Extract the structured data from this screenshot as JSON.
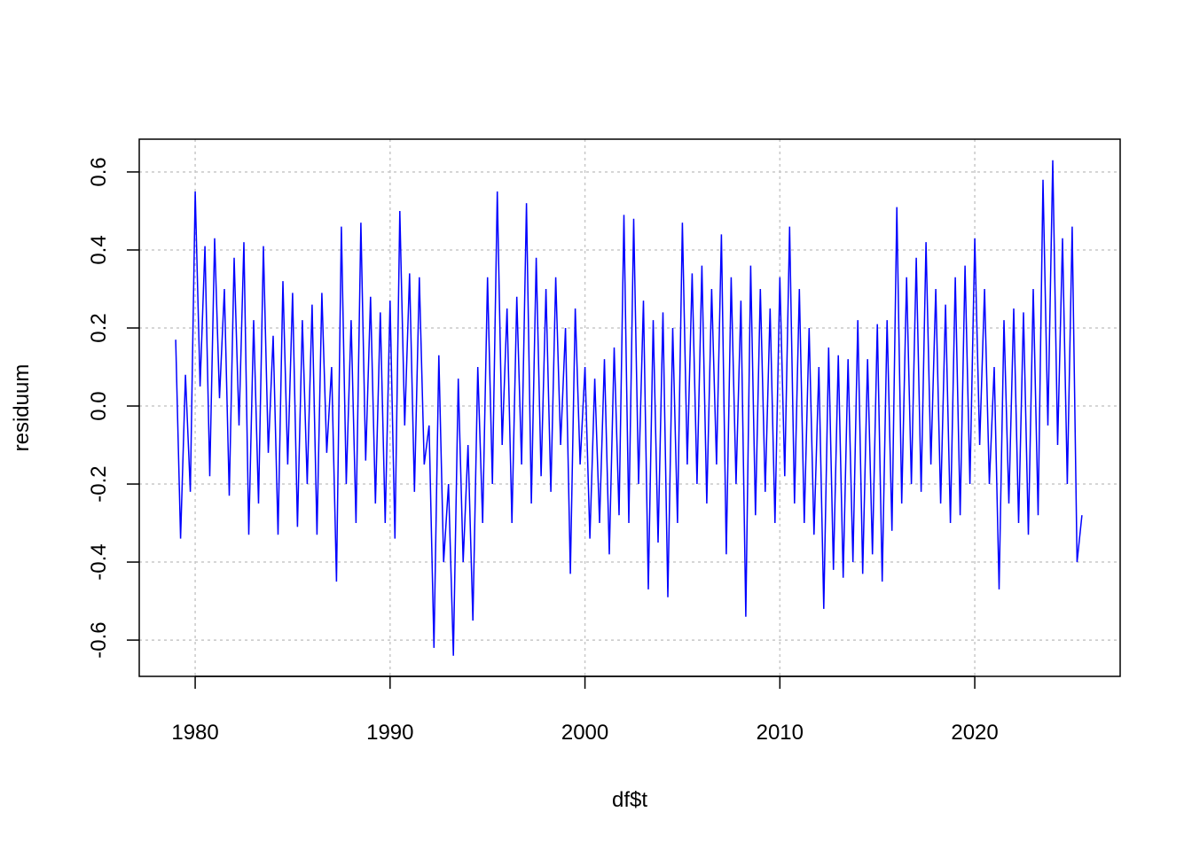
{
  "chart_data": {
    "type": "line",
    "x_label": "df$t",
    "y_label": "residuum",
    "color": "#0000ff",
    "grid": true,
    "xlim": [
      1977.13,
      2027.46
    ],
    "ylim": [
      -0.693,
      0.684
    ],
    "xticks": [
      1980,
      1990,
      2000,
      2010,
      2020
    ],
    "yticks": [
      -0.6,
      -0.4,
      -0.2,
      {
        "value": 0,
        "label": "0.0"
      },
      0.2,
      0.4,
      0.6
    ],
    "x": [
      1979,
      1979.25,
      1979.5,
      1979.75,
      1980,
      1980.25,
      1980.5,
      1980.75,
      1981,
      1981.25,
      1981.5,
      1981.75,
      1982,
      1982.25,
      1982.5,
      1982.75,
      1983,
      1983.25,
      1983.5,
      1983.75,
      1984,
      1984.25,
      1984.5,
      1984.75,
      1985,
      1985.25,
      1985.5,
      1985.75,
      1986,
      1986.25,
      1986.5,
      1986.75,
      1987,
      1987.25,
      1987.5,
      1987.75,
      1988,
      1988.25,
      1988.5,
      1988.75,
      1989,
      1989.25,
      1989.5,
      1989.75,
      1990,
      1990.25,
      1990.5,
      1990.75,
      1991,
      1991.25,
      1991.5,
      1991.75,
      1992,
      1992.25,
      1992.5,
      1992.75,
      1993,
      1993.25,
      1993.5,
      1993.75,
      1994,
      1994.25,
      1994.5,
      1994.75,
      1995,
      1995.25,
      1995.5,
      1995.75,
      1996,
      1996.25,
      1996.5,
      1996.75,
      1997,
      1997.25,
      1997.5,
      1997.75,
      1998,
      1998.25,
      1998.5,
      1998.75,
      1999,
      1999.25,
      1999.5,
      1999.75,
      2000,
      2000.25,
      2000.5,
      2000.75,
      2001,
      2001.25,
      2001.5,
      2001.75,
      2002,
      2002.25,
      2002.5,
      2002.75,
      2003,
      2003.25,
      2003.5,
      2003.75,
      2004,
      2004.25,
      2004.5,
      2004.75,
      2005,
      2005.25,
      2005.5,
      2005.75,
      2006,
      2006.25,
      2006.5,
      2006.75,
      2007,
      2007.25,
      2007.5,
      2007.75,
      2008,
      2008.25,
      2008.5,
      2008.75,
      2009,
      2009.25,
      2009.5,
      2009.75,
      2010,
      2010.25,
      2010.5,
      2010.75,
      2011,
      2011.25,
      2011.5,
      2011.75,
      2012,
      2012.25,
      2012.5,
      2012.75,
      2013,
      2013.25,
      2013.5,
      2013.75,
      2014,
      2014.25,
      2014.5,
      2014.75,
      2015,
      2015.25,
      2015.5,
      2015.75,
      2016,
      2016.25,
      2016.5,
      2016.75,
      2017,
      2017.25,
      2017.5,
      2017.75,
      2018,
      2018.25,
      2018.5,
      2018.75,
      2019,
      2019.25,
      2019.5,
      2019.75,
      2020,
      2020.25,
      2020.5,
      2020.75,
      2021,
      2021.25,
      2021.5,
      2021.75,
      2022,
      2022.25,
      2022.5,
      2022.75,
      2023,
      2023.25,
      2023.5,
      2023.75,
      2024,
      2024.25,
      2024.5,
      2024.75,
      2025,
      2025.25,
      2025.5
    ],
    "values": [
      0.17,
      -0.34,
      0.08,
      -0.22,
      0.55,
      0.05,
      0.41,
      -0.18,
      0.43,
      0.02,
      0.3,
      -0.23,
      0.38,
      -0.05,
      0.42,
      -0.33,
      0.22,
      -0.25,
      0.41,
      -0.12,
      0.18,
      -0.33,
      0.32,
      -0.15,
      0.29,
      -0.31,
      0.22,
      -0.2,
      0.26,
      -0.33,
      0.29,
      -0.12,
      0.1,
      -0.45,
      0.46,
      -0.2,
      0.22,
      -0.3,
      0.47,
      -0.14,
      0.28,
      -0.25,
      0.24,
      -0.3,
      0.27,
      -0.34,
      0.5,
      -0.05,
      0.34,
      -0.22,
      0.33,
      -0.15,
      -0.05,
      -0.62,
      0.13,
      -0.4,
      -0.2,
      -0.64,
      0.07,
      -0.4,
      -0.1,
      -0.55,
      0.1,
      -0.3,
      0.33,
      -0.2,
      0.55,
      -0.1,
      0.25,
      -0.3,
      0.28,
      -0.15,
      0.52,
      -0.25,
      0.38,
      -0.18,
      0.3,
      -0.22,
      0.33,
      -0.1,
      0.2,
      -0.43,
      0.25,
      -0.15,
      0.1,
      -0.34,
      0.07,
      -0.3,
      0.12,
      -0.38,
      0.15,
      -0.28,
      0.49,
      -0.3,
      0.48,
      -0.2,
      0.27,
      -0.47,
      0.22,
      -0.35,
      0.24,
      -0.49,
      0.2,
      -0.3,
      0.47,
      -0.15,
      0.34,
      -0.2,
      0.36,
      -0.25,
      0.3,
      -0.15,
      0.44,
      -0.38,
      0.33,
      -0.2,
      0.27,
      -0.54,
      0.36,
      -0.28,
      0.3,
      -0.22,
      0.25,
      -0.3,
      0.33,
      -0.18,
      0.46,
      -0.25,
      0.3,
      -0.3,
      0.2,
      -0.33,
      0.1,
      -0.52,
      0.15,
      -0.42,
      0.13,
      -0.44,
      0.12,
      -0.4,
      0.22,
      -0.43,
      0.12,
      -0.38,
      0.21,
      -0.45,
      0.22,
      -0.32,
      0.51,
      -0.25,
      0.33,
      -0.2,
      0.38,
      -0.22,
      0.42,
      -0.15,
      0.3,
      -0.25,
      0.26,
      -0.3,
      0.33,
      -0.28,
      0.36,
      -0.2,
      0.43,
      -0.1,
      0.3,
      -0.2,
      0.1,
      -0.47,
      0.22,
      -0.25,
      0.25,
      -0.3,
      0.24,
      -0.33,
      0.3,
      -0.28,
      0.58,
      -0.05,
      0.63,
      -0.1,
      0.43,
      -0.2,
      0.46,
      -0.4,
      -0.28
    ]
  }
}
